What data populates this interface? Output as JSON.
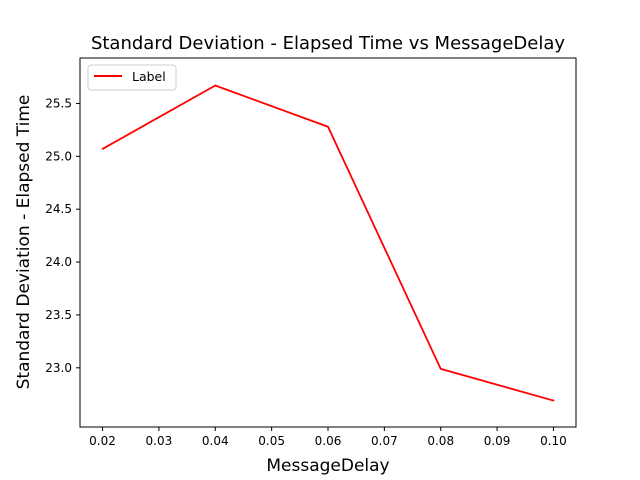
{
  "chart_data": {
    "type": "line",
    "title": "Standard Deviation - Elapsed Time vs MessageDelay",
    "xlabel": "MessageDelay",
    "ylabel": "Standard Deviation - Elapsed Time",
    "xlim": [
      0.016,
      0.104
    ],
    "ylim": [
      22.44,
      25.93
    ],
    "xticks": [
      0.02,
      0.03,
      0.04,
      0.05,
      0.06,
      0.07,
      0.08,
      0.09,
      0.1
    ],
    "xtick_labels": [
      "0.02",
      "0.03",
      "0.04",
      "0.05",
      "0.06",
      "0.07",
      "0.08",
      "0.09",
      "0.10"
    ],
    "yticks": [
      23.0,
      23.5,
      24.0,
      24.5,
      25.0,
      25.5
    ],
    "ytick_labels": [
      "23.0",
      "23.5",
      "24.0",
      "24.5",
      "25.0",
      "25.5"
    ],
    "grid": false,
    "legend_position": "upper-left",
    "series": [
      {
        "name": "Label",
        "color": "#ff0000",
        "x": [
          0.02,
          0.04,
          0.06,
          0.08,
          0.1
        ],
        "y": [
          25.07,
          25.67,
          25.28,
          22.99,
          22.69
        ]
      }
    ]
  }
}
